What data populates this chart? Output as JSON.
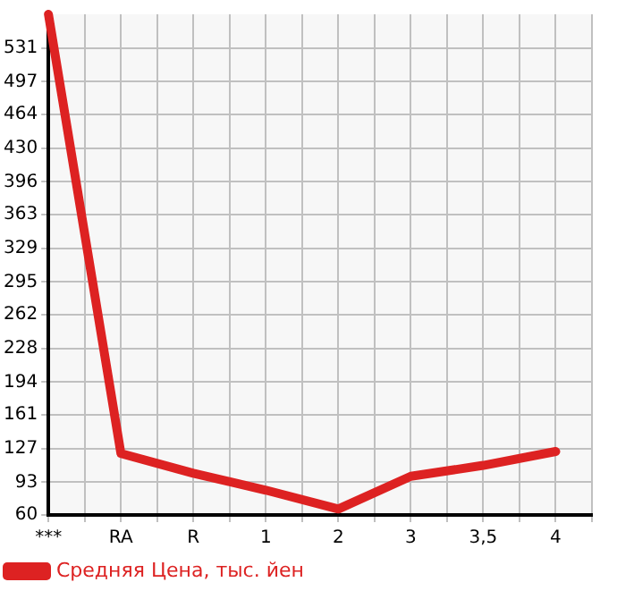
{
  "chart_data": {
    "type": "line",
    "categories": [
      "***",
      "RA",
      "R",
      "1",
      "2",
      "3",
      "3,5",
      "4"
    ],
    "series": [
      {
        "name": "Средняя Цена, тыс. йен",
        "color": "#dd2222",
        "values": [
          565,
          122,
          102,
          85,
          66,
          99,
          110,
          124
        ]
      }
    ],
    "ylim": [
      60,
      565
    ],
    "yticks": [
      60,
      93,
      127,
      161,
      194,
      228,
      262,
      295,
      329,
      363,
      396,
      430,
      464,
      497,
      531
    ],
    "grid": true,
    "legend": "bottom",
    "marker": "none",
    "line_style": "solid"
  }
}
